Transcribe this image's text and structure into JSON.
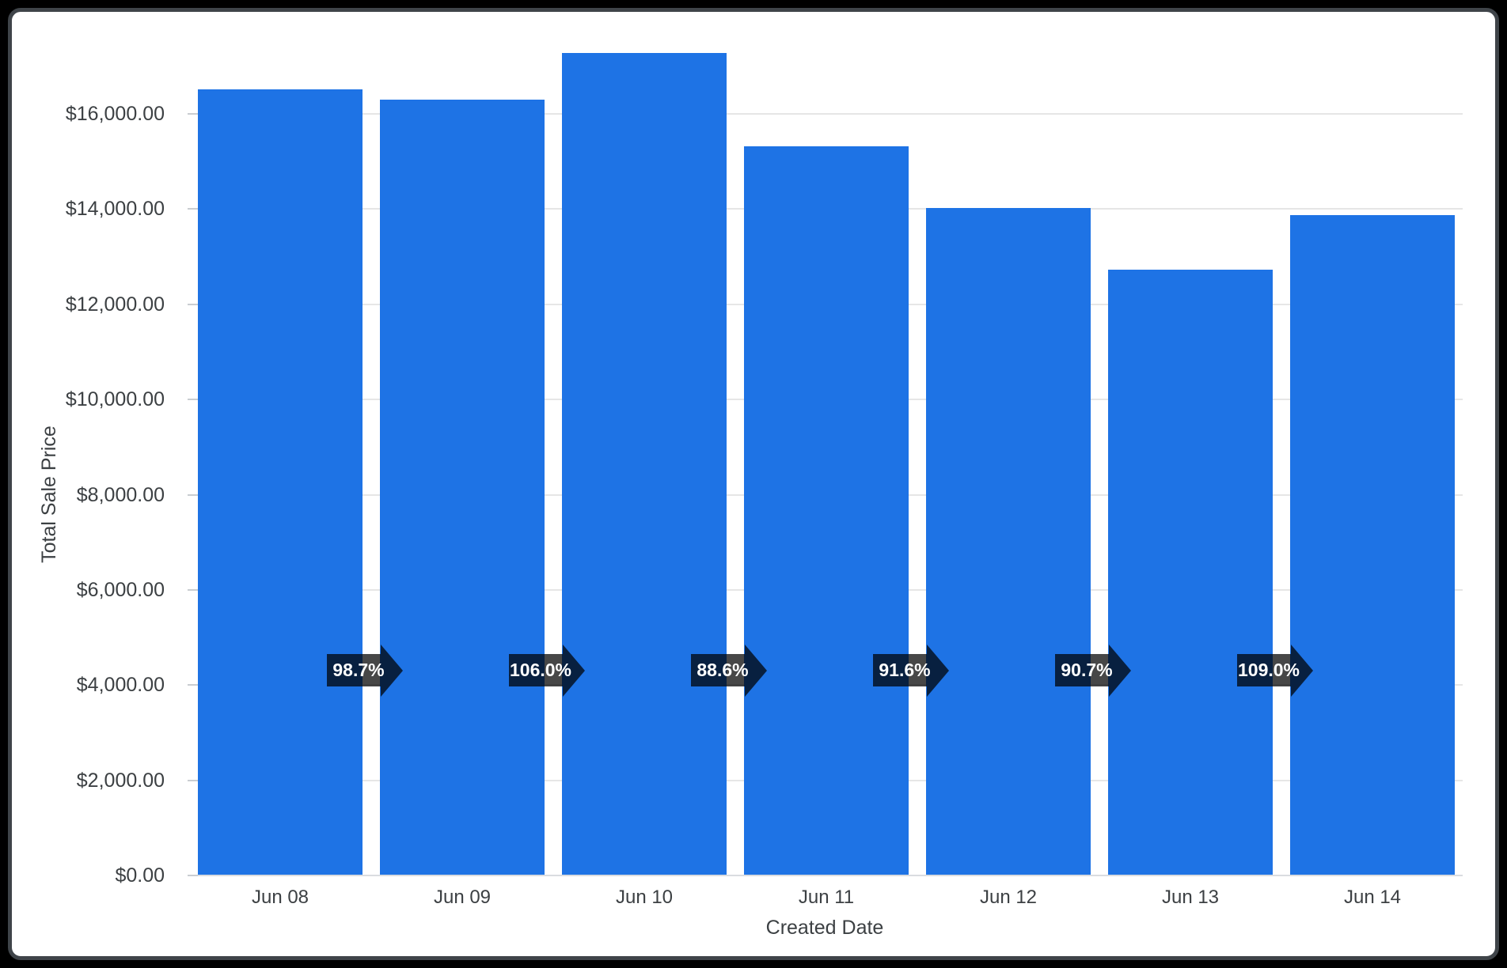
{
  "chart_data": {
    "type": "bar",
    "title": "",
    "xlabel": "Created Date",
    "ylabel": "Total Sale Price",
    "series_name": "Total Sale Price",
    "categories": [
      "Jun 08",
      "Jun 09",
      "Jun 10",
      "Jun 11",
      "Jun 12",
      "Jun 13",
      "Jun 14"
    ],
    "values": [
      16500,
      16286,
      17263,
      15295,
      14010,
      12707,
      13851
    ],
    "value_unit": "USD",
    "change_arrows": [
      "98.7%",
      "106.0%",
      "88.6%",
      "91.6%",
      "90.7%",
      "109.0%"
    ],
    "y_ticks": [
      {
        "value": 0,
        "label": "$0.00"
      },
      {
        "value": 2000,
        "label": "$2,000.00"
      },
      {
        "value": 4000,
        "label": "$4,000.00"
      },
      {
        "value": 6000,
        "label": "$6,000.00"
      },
      {
        "value": 8000,
        "label": "$8,000.00"
      },
      {
        "value": 10000,
        "label": "$10,000.00"
      },
      {
        "value": 12000,
        "label": "$12,000.00"
      },
      {
        "value": 14000,
        "label": "$14,000.00"
      },
      {
        "value": 16000,
        "label": "$16,000.00"
      }
    ],
    "ylim": [
      0,
      17925
    ],
    "grid": true,
    "legend": "none"
  },
  "colors": {
    "bar": "#1e73e5",
    "arrow_overlay": "rgba(0,0,0,0.72)",
    "arrow_text": "#ffffff",
    "gridline": "#e6e6e6",
    "baseline": "#dadce0",
    "axis_text": "#3c4043",
    "card_background": "#ffffff",
    "card_border": "#3f4449",
    "page_background": "#000000"
  }
}
